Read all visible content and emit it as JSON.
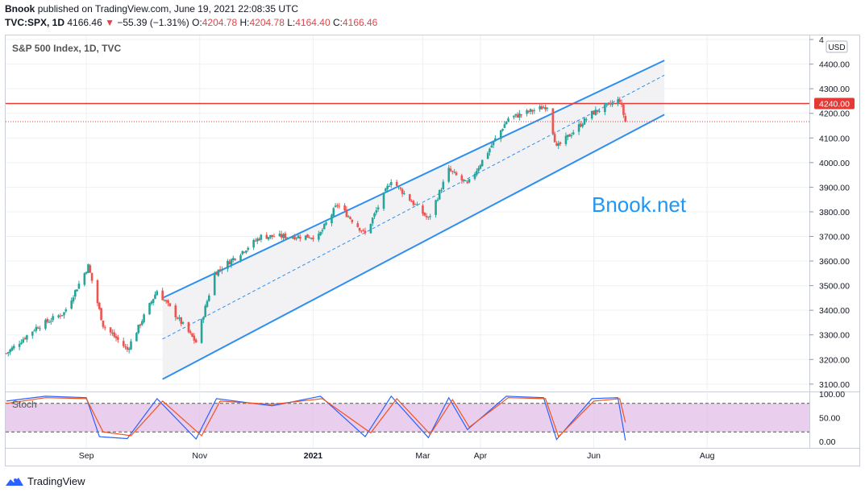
{
  "header": {
    "publisher": "Bnook",
    "published_text": "published on TradingView.com, June 19, 2021 22:08:35 UTC",
    "symbol": "TVC:SPX, 1D",
    "last": "4166.46",
    "change_arrow": "▼",
    "change": "−55.39 (−1.31%)",
    "o_label": "O:",
    "o_value": "4204.78",
    "h_label": "H:",
    "h_value": "4204.78",
    "l_label": "L:",
    "l_value": "4164.40",
    "c_label": "C:",
    "c_value": "4166.46"
  },
  "chart_title": "S&P 500 Index, 1D, TVC",
  "currency": "USD",
  "watermark": "Bnook.net",
  "oscillator_label": "Stoch",
  "footer": {
    "brand": "TradingView"
  },
  "colors": {
    "up": "#26a69a",
    "down": "#ef5350",
    "channel": "#2e8ff0",
    "resistance": "#e53935",
    "stoch_k": "#2962ff",
    "stoch_d": "#f4511e",
    "stoch_band": "#e1bee7",
    "watermark": "#2196f3"
  },
  "chart_data": [
    {
      "type": "candlestick",
      "title": "S&P 500 Index, 1D, TVC",
      "y_axis_ticks": [
        "4",
        "4400.00",
        "4300.00",
        "4200.00",
        "4100.00",
        "4000.00",
        "3900.00",
        "3800.00",
        "3700.00",
        "3600.00",
        "3500.00",
        "3400.00",
        "3300.00",
        "3200.00",
        "3100.00"
      ],
      "x_axis_ticks": [
        "Sep",
        "Nov",
        "2021",
        "Mar",
        "Apr",
        "Jun",
        "Aug"
      ],
      "ylim": [
        3070,
        4510
      ],
      "horizontal_line": {
        "value": 4240,
        "label": "4240.00"
      },
      "last_close": 4166.46,
      "channel": {
        "upper": [
          {
            "date": "2020-10-12",
            "value": 3450
          },
          {
            "date": "2021-07-09",
            "value": 4415
          }
        ],
        "mid": [
          {
            "date": "2020-10-12",
            "value": 3283
          },
          {
            "date": "2021-07-09",
            "value": 4355
          }
        ],
        "lower": [
          {
            "date": "2020-10-12",
            "value": 3120
          },
          {
            "date": "2021-07-09",
            "value": 4195
          }
        ]
      },
      "close_path": [
        {
          "date": "2020-07-20",
          "value": 3225
        },
        {
          "date": "2020-08-05",
          "value": 3330
        },
        {
          "date": "2020-08-20",
          "value": 3390
        },
        {
          "date": "2020-09-02",
          "value": 3580
        },
        {
          "date": "2020-09-10",
          "value": 3340
        },
        {
          "date": "2020-09-23",
          "value": 3240
        },
        {
          "date": "2020-10-09",
          "value": 3480
        },
        {
          "date": "2020-10-30",
          "value": 3270
        },
        {
          "date": "2020-11-09",
          "value": 3550
        },
        {
          "date": "2020-12-04",
          "value": 3700
        },
        {
          "date": "2021-01-04",
          "value": 3700
        },
        {
          "date": "2021-01-14",
          "value": 3830
        },
        {
          "date": "2021-01-29",
          "value": 3710
        },
        {
          "date": "2021-02-12",
          "value": 3930
        },
        {
          "date": "2021-03-04",
          "value": 3770
        },
        {
          "date": "2021-03-15",
          "value": 3970
        },
        {
          "date": "2021-03-25",
          "value": 3910
        },
        {
          "date": "2021-04-16",
          "value": 4180
        },
        {
          "date": "2021-05-07",
          "value": 4230
        },
        {
          "date": "2021-05-12",
          "value": 4060
        },
        {
          "date": "2021-05-31",
          "value": 4200
        },
        {
          "date": "2021-06-15",
          "value": 4255
        },
        {
          "date": "2021-06-18",
          "value": 4166
        }
      ]
    },
    {
      "type": "line",
      "title": "Stoch",
      "y_axis_ticks": [
        "100.00",
        "50.00",
        "0.00"
      ],
      "ylim": [
        0,
        100
      ],
      "bands": [
        20,
        80
      ],
      "series": [
        {
          "values": [
            {
              "date": "2020-07-20",
              "value": 85
            },
            {
              "date": "2020-08-10",
              "value": 95
            },
            {
              "date": "2020-09-01",
              "value": 92
            },
            {
              "date": "2020-09-08",
              "value": 10
            },
            {
              "date": "2020-09-23",
              "value": 6
            },
            {
              "date": "2020-10-09",
              "value": 90
            },
            {
              "date": "2020-10-30",
              "value": 5
            },
            {
              "date": "2020-11-10",
              "value": 90
            },
            {
              "date": "2020-12-10",
              "value": 75
            },
            {
              "date": "2021-01-05",
              "value": 95
            },
            {
              "date": "2021-01-29",
              "value": 10
            },
            {
              "date": "2021-02-12",
              "value": 95
            },
            {
              "date": "2021-03-04",
              "value": 8
            },
            {
              "date": "2021-03-15",
              "value": 92
            },
            {
              "date": "2021-03-25",
              "value": 25
            },
            {
              "date": "2021-04-15",
              "value": 95
            },
            {
              "date": "2021-05-05",
              "value": 92
            },
            {
              "date": "2021-05-12",
              "value": 4
            },
            {
              "date": "2021-05-31",
              "value": 90
            },
            {
              "date": "2021-06-14",
              "value": 92
            },
            {
              "date": "2021-06-18",
              "value": 2
            }
          ]
        },
        {
          "values": [
            {
              "date": "2020-07-20",
              "value": 80
            },
            {
              "date": "2020-08-10",
              "value": 92
            },
            {
              "date": "2020-09-01",
              "value": 90
            },
            {
              "date": "2020-09-10",
              "value": 20
            },
            {
              "date": "2020-09-25",
              "value": 12
            },
            {
              "date": "2020-10-12",
              "value": 85
            },
            {
              "date": "2020-11-02",
              "value": 12
            },
            {
              "date": "2020-11-12",
              "value": 85
            },
            {
              "date": "2020-12-10",
              "value": 78
            },
            {
              "date": "2021-01-06",
              "value": 90
            },
            {
              "date": "2021-02-01",
              "value": 18
            },
            {
              "date": "2021-02-15",
              "value": 90
            },
            {
              "date": "2021-03-05",
              "value": 15
            },
            {
              "date": "2021-03-17",
              "value": 88
            },
            {
              "date": "2021-03-26",
              "value": 30
            },
            {
              "date": "2021-04-16",
              "value": 92
            },
            {
              "date": "2021-05-06",
              "value": 90
            },
            {
              "date": "2021-05-13",
              "value": 10
            },
            {
              "date": "2021-06-01",
              "value": 85
            },
            {
              "date": "2021-06-15",
              "value": 90
            },
            {
              "date": "2021-06-18",
              "value": 40
            }
          ]
        }
      ]
    }
  ]
}
